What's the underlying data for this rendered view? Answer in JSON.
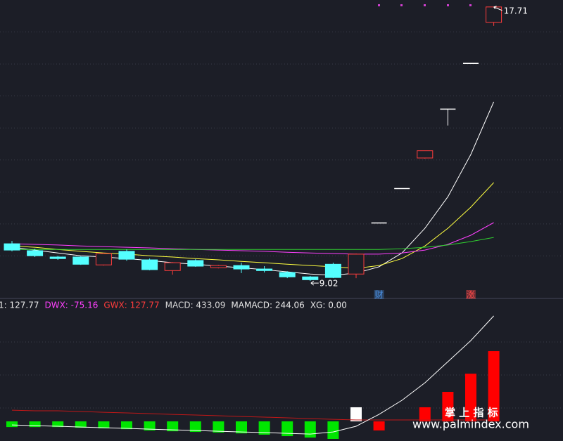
{
  "chart_data": [
    {
      "type": "candlestick",
      "open": [
        10.2,
        9.98,
        9.78,
        9.78,
        9.53,
        9.96,
        9.69,
        9.35,
        9.67,
        9.44,
        9.51,
        9.4,
        9.29,
        9.15,
        9.55,
        9.24,
        10.86,
        11.95,
        12.92,
        14.47,
        15.92,
        17.22
      ],
      "high": [
        10.29,
        10.04,
        9.82,
        9.8,
        9.91,
        10.02,
        9.73,
        9.62,
        9.71,
        9.53,
        9.6,
        9.49,
        9.33,
        9.18,
        9.6,
        9.89,
        10.86,
        11.95,
        13.15,
        14.47,
        15.92,
        17.71
      ],
      "low": [
        9.96,
        9.78,
        9.69,
        9.53,
        9.51,
        9.66,
        9.36,
        9.22,
        9.47,
        9.42,
        9.27,
        9.29,
        9.11,
        9.02,
        9.11,
        9.11,
        10.86,
        11.95,
        12.9,
        13.95,
        15.92,
        17.11
      ],
      "close": [
        10.0,
        9.82,
        9.73,
        9.55,
        9.89,
        9.71,
        9.38,
        9.6,
        9.49,
        9.51,
        9.4,
        9.35,
        9.15,
        9.06,
        9.13,
        9.87,
        10.86,
        11.95,
        13.15,
        14.47,
        15.92,
        17.71
      ],
      "up_color": "#ff3c3c",
      "down_color": "#54ffff",
      "flat_color": "#ffffff",
      "lines": [
        {
          "color": "#ffffff",
          "values": [
            10.09,
            10.0,
            9.91,
            9.82,
            9.78,
            9.73,
            9.67,
            9.6,
            9.55,
            9.49,
            9.44,
            9.38,
            9.31,
            9.24,
            9.2,
            9.27,
            9.47,
            9.91,
            10.69,
            11.69,
            13.03,
            14.7
          ]
        },
        {
          "color": "#ffff40",
          "values": [
            10.13,
            10.09,
            10.02,
            9.96,
            9.91,
            9.87,
            9.82,
            9.78,
            9.73,
            9.69,
            9.64,
            9.6,
            9.55,
            9.51,
            9.47,
            9.42,
            9.51,
            9.73,
            10.13,
            10.69,
            11.36,
            12.14
          ]
        },
        {
          "color": "#ff40ff",
          "values": [
            10.2,
            10.18,
            10.16,
            10.13,
            10.11,
            10.09,
            10.07,
            10.04,
            10.02,
            10.0,
            9.98,
            9.96,
            9.93,
            9.91,
            9.89,
            9.87,
            9.87,
            9.91,
            10.0,
            10.18,
            10.47,
            10.87
          ]
        },
        {
          "color": "#30d030",
          "values": [
            10.02,
            10.02,
            10.02,
            10.02,
            10.02,
            10.02,
            10.02,
            10.02,
            10.02,
            10.02,
            10.02,
            10.02,
            10.02,
            10.02,
            10.02,
            10.02,
            10.02,
            10.04,
            10.09,
            10.16,
            10.27,
            10.4
          ]
        }
      ],
      "signals": [
        null,
        null,
        null,
        null,
        null,
        null,
        null,
        null,
        null,
        null,
        null,
        null,
        null,
        null,
        null,
        null,
        "财",
        null,
        null,
        null,
        "涨",
        null
      ],
      "signal_colors": [
        "#4a8fe0",
        "#ff4a4a"
      ],
      "ylim": [
        8.8,
        17.93
      ],
      "grid": true
    },
    {
      "type": "bar",
      "legend": [
        {
          "text": "1: 127.77",
          "color": "#e8e8e8"
        },
        {
          "text": "DWX: -75.16",
          "color": "#ff40ff"
        },
        {
          "text": "GWX: 127.77",
          "color": "#ff3c3c"
        },
        {
          "text": "MACD: 433.09",
          "color": "#d8d8d8"
        },
        {
          "text": "MAMACD: 244.06",
          "color": "#e8e8e8"
        },
        {
          "text": "XG: 0.00",
          "color": "#e8e8e8"
        }
      ],
      "values": [
        -35,
        -35,
        -35,
        -39,
        -43,
        -48,
        -56,
        -61,
        -65,
        -69,
        -74,
        -82,
        -91,
        -100,
        -108,
        87,
        -56,
        0,
        87,
        182,
        294,
        433.09
      ],
      "colors": [
        "#00e600",
        "#00e600",
        "#00e600",
        "#00e600",
        "#00e600",
        "#00e600",
        "#00e600",
        "#00e600",
        "#00e600",
        "#00e600",
        "#00e600",
        "#00e600",
        "#00e600",
        "#00e600",
        "#00e600",
        "#ffffff",
        "#ff0000",
        "#ff0000",
        "#ff0000",
        "#ff0000",
        "#ff0000",
        "#ff0000"
      ],
      "lines": [
        {
          "color": "#c01818",
          "values": [
            69,
            65,
            65,
            61,
            56,
            52,
            48,
            43,
            39,
            35,
            30,
            26,
            22,
            17,
            13,
            9,
            9,
            9,
            9,
            9,
            9,
            9
          ]
        },
        {
          "color": "#ffffff",
          "values": [
            -22,
            -26,
            -30,
            -35,
            -39,
            -43,
            -48,
            -52,
            -56,
            -61,
            -65,
            -69,
            -74,
            -78,
            -65,
            -30,
            43,
            130,
            238,
            368,
            498,
            650
          ]
        }
      ],
      "ylim": [
        -121,
        693
      ],
      "grid": true
    }
  ],
  "watermark": {
    "title": "掌 上 指 标",
    "url": "www.palmindex.com"
  }
}
